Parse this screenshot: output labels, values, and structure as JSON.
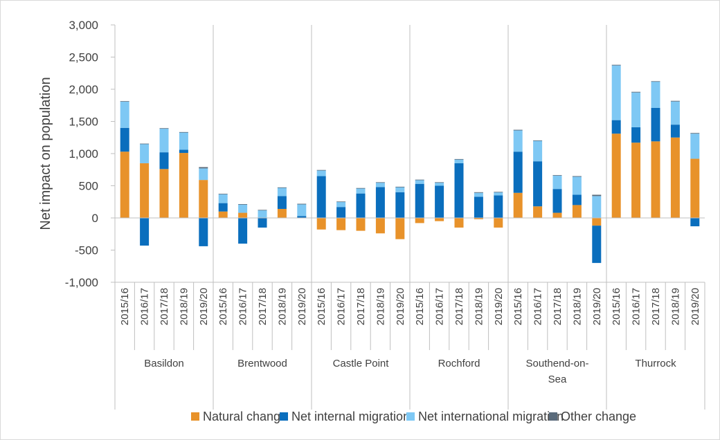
{
  "chart_data": {
    "type": "bar",
    "stacked": true,
    "ylabel": "Net impact on population",
    "ylim": [
      -1000,
      3000
    ],
    "y_ticks": [
      -1000,
      -500,
      0,
      500,
      1000,
      1500,
      2000,
      2500,
      3000
    ],
    "y_tick_labels": [
      "-1,000",
      "-500",
      "0",
      "500",
      "1,000",
      "1,500",
      "2,000",
      "2,500",
      "3,000"
    ],
    "years": [
      "2015/16",
      "2016/17",
      "2017/18",
      "2018/19",
      "2019/20"
    ],
    "groups": [
      {
        "label_lines": [
          "Basildon"
        ]
      },
      {
        "label_lines": [
          "Brentwood"
        ]
      },
      {
        "label_lines": [
          "Castle Point"
        ]
      },
      {
        "label_lines": [
          "Rochford"
        ]
      },
      {
        "label_lines": [
          "Southend-on-",
          "Sea"
        ]
      },
      {
        "label_lines": [
          "Thurrock"
        ]
      }
    ],
    "grid": false,
    "legend_position": "bottom",
    "series": [
      {
        "name": "Natural change",
        "color": "#E8922A",
        "values": [
          1030,
          850,
          760,
          1010,
          590,
          100,
          80,
          0,
          140,
          0,
          -180,
          -190,
          -200,
          -240,
          -330,
          -80,
          -50,
          -150,
          -20,
          -150,
          390,
          180,
          80,
          200,
          -120,
          1310,
          1170,
          1190,
          1250,
          920
        ]
      },
      {
        "name": "Net internal migration",
        "color": "#0A6EBD",
        "values": [
          370,
          -430,
          260,
          50,
          -440,
          130,
          -400,
          -150,
          200,
          30,
          650,
          170,
          380,
          480,
          400,
          530,
          500,
          850,
          330,
          350,
          640,
          700,
          370,
          160,
          -580,
          210,
          240,
          520,
          200,
          -130
        ]
      },
      {
        "name": "Net international migration",
        "color": "#7EC8F4",
        "values": [
          410,
          300,
          370,
          270,
          180,
          140,
          130,
          120,
          130,
          180,
          90,
          80,
          80,
          70,
          80,
          60,
          50,
          60,
          60,
          50,
          330,
          320,
          210,
          280,
          340,
          850,
          540,
          410,
          360,
          390
        ]
      },
      {
        "name": "Other change",
        "color": "#5A6B7B",
        "values": [
          5,
          5,
          5,
          5,
          20,
          5,
          5,
          5,
          5,
          10,
          5,
          5,
          5,
          5,
          5,
          5,
          5,
          5,
          10,
          5,
          10,
          5,
          5,
          10,
          20,
          10,
          10,
          5,
          10,
          10
        ]
      }
    ]
  }
}
